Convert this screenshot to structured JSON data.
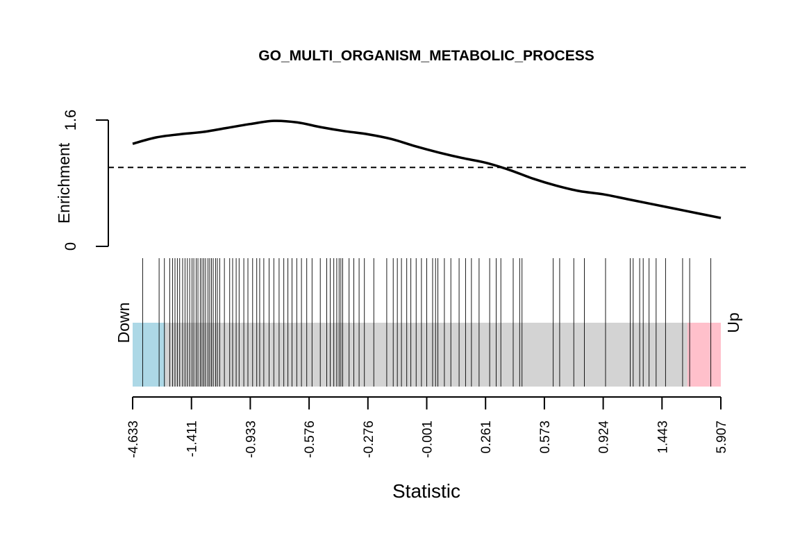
{
  "chart_data": {
    "type": "line",
    "title": "GO_MULTI_ORGANISM_METABOLIC_PROCESS",
    "xlabel": "Statistic",
    "ylabel": "Enrichment",
    "ylim": [
      0,
      1.6
    ],
    "ytick_labels": [
      "0",
      "1.6"
    ],
    "reference_line": 1.0,
    "x_tick_labels": [
      "-4.633",
      "-1.411",
      "-0.933",
      "-0.576",
      "-0.276",
      "-0.001",
      "0.261",
      "0.573",
      "0.924",
      "1.443",
      "5.907"
    ],
    "x_rank_range": [
      0,
      1
    ],
    "down_label": "Down",
    "up_label": "Up",
    "colors": {
      "down": "#add8e6",
      "middle": "#d3d3d3",
      "up": "#ffc0cb",
      "curve": "#000000",
      "barcode": "#000000"
    },
    "down_region": [
      0.0,
      0.055
    ],
    "up_region": [
      0.943,
      1.0
    ],
    "series": [
      {
        "x": [
          0.0,
          0.04,
          0.08,
          0.12,
          0.16,
          0.2,
          0.24,
          0.28,
          0.32,
          0.36,
          0.4,
          0.44,
          0.48,
          0.52,
          0.56,
          0.6,
          0.64,
          0.68,
          0.72,
          0.76,
          0.8,
          0.84,
          0.88,
          0.92,
          0.96,
          1.0
        ],
        "values": [
          1.3,
          1.38,
          1.42,
          1.45,
          1.5,
          1.55,
          1.59,
          1.57,
          1.51,
          1.46,
          1.42,
          1.36,
          1.27,
          1.19,
          1.12,
          1.06,
          0.97,
          0.86,
          0.77,
          0.7,
          0.66,
          0.6,
          0.54,
          0.48,
          0.42,
          0.36
        ]
      }
    ],
    "barcode_positions": [
      0.017,
      0.045,
      0.054,
      0.063,
      0.068,
      0.072,
      0.076,
      0.08,
      0.085,
      0.089,
      0.093,
      0.097,
      0.101,
      0.104,
      0.108,
      0.111,
      0.115,
      0.118,
      0.121,
      0.124,
      0.128,
      0.131,
      0.134,
      0.137,
      0.141,
      0.144,
      0.148,
      0.156,
      0.165,
      0.17,
      0.176,
      0.181,
      0.189,
      0.196,
      0.204,
      0.211,
      0.216,
      0.223,
      0.232,
      0.24,
      0.249,
      0.257,
      0.264,
      0.271,
      0.279,
      0.287,
      0.296,
      0.305,
      0.319,
      0.33,
      0.336,
      0.342,
      0.347,
      0.351,
      0.354,
      0.357,
      0.368,
      0.376,
      0.385,
      0.394,
      0.41,
      0.432,
      0.443,
      0.45,
      0.457,
      0.466,
      0.473,
      0.482,
      0.491,
      0.5,
      0.51,
      0.515,
      0.519,
      0.53,
      0.541,
      0.555,
      0.566,
      0.576,
      0.589,
      0.607,
      0.618,
      0.626,
      0.647,
      0.658,
      0.662,
      0.715,
      0.726,
      0.75,
      0.768,
      0.804,
      0.846,
      0.851,
      0.862,
      0.868,
      0.878,
      0.89,
      0.906,
      0.935,
      0.947,
      0.983
    ]
  }
}
